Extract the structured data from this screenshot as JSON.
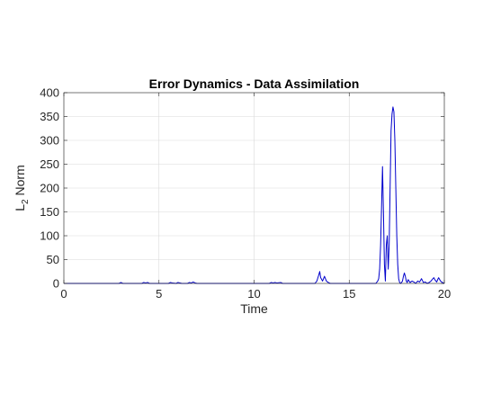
{
  "chart_data": {
    "type": "line",
    "title": "Error Dynamics - Data Assimilation",
    "xlabel": "Time",
    "ylabel": "L",
    "ylabel_subscript": "2",
    "ylabel_suffix": " Norm",
    "xlim": [
      0,
      20
    ],
    "ylim": [
      0,
      400
    ],
    "xticks": [
      "0",
      "5",
      "10",
      "15",
      "20"
    ],
    "yticks": [
      "0",
      "50",
      "100",
      "150",
      "200",
      "250",
      "300",
      "350",
      "400"
    ],
    "grid": true,
    "legend": "none",
    "series": [
      {
        "color": "#0000cc",
        "x": [
          0,
          2.9,
          3.0,
          3.1,
          4.1,
          4.2,
          4.3,
          4.4,
          4.5,
          5.5,
          5.6,
          5.7,
          5.9,
          6.0,
          6.1,
          6.2,
          6.5,
          6.6,
          6.7,
          6.8,
          6.9,
          7.0,
          10.8,
          10.9,
          11.0,
          11.1,
          11.2,
          11.4,
          11.5,
          13.2,
          13.3,
          13.4,
          13.45,
          13.5,
          13.6,
          13.7,
          13.75,
          13.8,
          13.9,
          14.0,
          16.4,
          16.5,
          16.55,
          16.6,
          16.65,
          16.7,
          16.75,
          16.8,
          16.85,
          16.9,
          16.95,
          17.0,
          17.05,
          17.1,
          17.15,
          17.2,
          17.25,
          17.3,
          17.35,
          17.4,
          17.45,
          17.5,
          17.55,
          17.6,
          17.65,
          17.7,
          17.75,
          17.8,
          17.85,
          17.9,
          17.95,
          18.0,
          18.05,
          18.1,
          18.15,
          18.2,
          18.3,
          18.4,
          18.5,
          18.6,
          18.7,
          18.8,
          18.85,
          18.9,
          19.0,
          19.1,
          19.2,
          19.3,
          19.4,
          19.45,
          19.5,
          19.6,
          19.65,
          19.7,
          19.8,
          19.9,
          20.0
        ],
        "y": [
          0,
          0,
          2,
          0,
          0,
          2,
          1,
          2,
          0,
          0,
          2,
          1,
          0,
          2,
          1,
          0,
          0,
          2,
          1,
          3,
          1,
          0,
          0,
          2,
          1,
          2,
          1,
          2,
          0,
          0,
          5,
          18,
          25,
          12,
          5,
          15,
          10,
          5,
          2,
          0,
          0,
          5,
          10,
          30,
          80,
          160,
          245,
          150,
          40,
          5,
          80,
          100,
          30,
          80,
          200,
          320,
          355,
          370,
          360,
          300,
          200,
          100,
          40,
          10,
          2,
          0,
          2,
          5,
          15,
          22,
          15,
          5,
          2,
          8,
          5,
          2,
          5,
          3,
          0,
          5,
          3,
          10,
          6,
          2,
          3,
          0,
          2,
          5,
          10,
          12,
          8,
          3,
          8,
          12,
          5,
          2,
          0
        ]
      }
    ]
  }
}
